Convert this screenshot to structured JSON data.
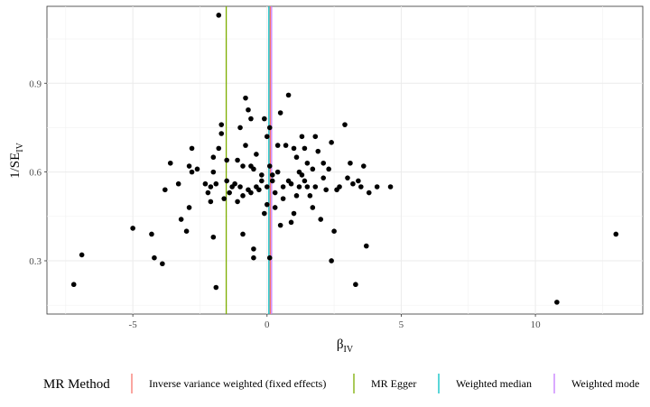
{
  "chart_data": {
    "type": "scatter",
    "xlabel_main": "β",
    "xlabel_sub": "IV",
    "ylabel_main": "1/SE",
    "ylabel_sub": "IV",
    "xlim": [
      -8.2,
      14.0
    ],
    "ylim": [
      0.12,
      1.16
    ],
    "x_ticks": [
      {
        "value": -5,
        "label": "-5"
      },
      {
        "value": 0,
        "label": "0"
      },
      {
        "value": 5,
        "label": "5"
      },
      {
        "value": 10,
        "label": "10"
      }
    ],
    "y_ticks": [
      {
        "value": 0.3,
        "label": "0.3"
      },
      {
        "value": 0.6,
        "label": "0.6"
      },
      {
        "value": 0.9,
        "label": "0.9"
      }
    ],
    "grid": true,
    "legend_position": "bottom",
    "legend_title": "MR Method",
    "methods": [
      {
        "name": "Inverse variance weighted (fixed effects)",
        "estimate": 0.12,
        "color": "#F8766D"
      },
      {
        "name": "MR Egger",
        "estimate": -1.52,
        "color": "#7CAE00"
      },
      {
        "name": "Weighted median",
        "estimate": 0.07,
        "color": "#00BFC4"
      },
      {
        "name": "Weighted mode",
        "estimate": 0.17,
        "color": "#C77CFF"
      }
    ],
    "points": [
      [
        -7.2,
        0.22
      ],
      [
        -6.9,
        0.32
      ],
      [
        -5.0,
        0.41
      ],
      [
        -4.3,
        0.39
      ],
      [
        -4.2,
        0.31
      ],
      [
        -3.9,
        0.29
      ],
      [
        -3.8,
        0.54
      ],
      [
        -3.6,
        0.63
      ],
      [
        -3.3,
        0.56
      ],
      [
        -3.2,
        0.44
      ],
      [
        -3.0,
        0.4
      ],
      [
        -2.9,
        0.48
      ],
      [
        -2.9,
        0.62
      ],
      [
        -2.8,
        0.6
      ],
      [
        -2.8,
        0.68
      ],
      [
        -2.6,
        0.61
      ],
      [
        -2.3,
        0.56
      ],
      [
        -2.2,
        0.53
      ],
      [
        -2.1,
        0.55
      ],
      [
        -2.1,
        0.5
      ],
      [
        -2.0,
        0.38
      ],
      [
        -2.0,
        0.6
      ],
      [
        -2.0,
        0.65
      ],
      [
        -1.9,
        0.21
      ],
      [
        -1.9,
        0.56
      ],
      [
        -1.8,
        0.68
      ],
      [
        -1.8,
        1.13
      ],
      [
        -1.7,
        0.73
      ],
      [
        -1.7,
        0.76
      ],
      [
        -1.6,
        0.51
      ],
      [
        -1.5,
        0.64
      ],
      [
        -1.5,
        0.57
      ],
      [
        -1.4,
        0.53
      ],
      [
        -1.3,
        0.55
      ],
      [
        -1.2,
        0.56
      ],
      [
        -1.1,
        0.64
      ],
      [
        -1.1,
        0.5
      ],
      [
        -1.0,
        0.75
      ],
      [
        -1.0,
        0.55
      ],
      [
        -0.9,
        0.52
      ],
      [
        -0.9,
        0.39
      ],
      [
        -0.9,
        0.62
      ],
      [
        -0.8,
        0.85
      ],
      [
        -0.8,
        0.69
      ],
      [
        -0.7,
        0.81
      ],
      [
        -0.7,
        0.54
      ],
      [
        -0.6,
        0.78
      ],
      [
        -0.6,
        0.62
      ],
      [
        -0.6,
        0.53
      ],
      [
        -0.5,
        0.34
      ],
      [
        -0.5,
        0.31
      ],
      [
        -0.5,
        0.61
      ],
      [
        -0.4,
        0.55
      ],
      [
        -0.4,
        0.66
      ],
      [
        -0.3,
        0.54
      ],
      [
        -0.2,
        0.59
      ],
      [
        -0.2,
        0.57
      ],
      [
        -0.1,
        0.78
      ],
      [
        -0.1,
        0.46
      ],
      [
        0.0,
        0.72
      ],
      [
        0.0,
        0.55
      ],
      [
        0.0,
        0.49
      ],
      [
        0.1,
        0.75
      ],
      [
        0.1,
        0.62
      ],
      [
        0.1,
        0.31
      ],
      [
        0.2,
        0.57
      ],
      [
        0.2,
        0.59
      ],
      [
        0.3,
        0.53
      ],
      [
        0.3,
        0.48
      ],
      [
        0.4,
        0.6
      ],
      [
        0.4,
        0.69
      ],
      [
        0.5,
        0.8
      ],
      [
        0.5,
        0.42
      ],
      [
        0.6,
        0.55
      ],
      [
        0.6,
        0.51
      ],
      [
        0.7,
        0.69
      ],
      [
        0.8,
        0.86
      ],
      [
        0.8,
        0.57
      ],
      [
        0.9,
        0.43
      ],
      [
        0.9,
        0.56
      ],
      [
        1.0,
        0.68
      ],
      [
        1.0,
        0.46
      ],
      [
        1.1,
        0.52
      ],
      [
        1.1,
        0.65
      ],
      [
        1.2,
        0.6
      ],
      [
        1.2,
        0.55
      ],
      [
        1.3,
        0.72
      ],
      [
        1.3,
        0.59
      ],
      [
        1.4,
        0.57
      ],
      [
        1.4,
        0.68
      ],
      [
        1.5,
        0.63
      ],
      [
        1.5,
        0.55
      ],
      [
        1.6,
        0.52
      ],
      [
        1.7,
        0.61
      ],
      [
        1.7,
        0.48
      ],
      [
        1.8,
        0.72
      ],
      [
        1.8,
        0.55
      ],
      [
        1.9,
        0.67
      ],
      [
        2.0,
        0.44
      ],
      [
        2.1,
        0.63
      ],
      [
        2.1,
        0.58
      ],
      [
        2.2,
        0.54
      ],
      [
        2.3,
        0.61
      ],
      [
        2.4,
        0.7
      ],
      [
        2.4,
        0.3
      ],
      [
        2.5,
        0.4
      ],
      [
        2.6,
        0.54
      ],
      [
        2.7,
        0.55
      ],
      [
        2.9,
        0.76
      ],
      [
        3.0,
        0.58
      ],
      [
        3.1,
        0.63
      ],
      [
        3.2,
        0.56
      ],
      [
        3.3,
        0.22
      ],
      [
        3.4,
        0.57
      ],
      [
        3.5,
        0.55
      ],
      [
        3.6,
        0.62
      ],
      [
        3.7,
        0.35
      ],
      [
        3.8,
        0.53
      ],
      [
        4.1,
        0.55
      ],
      [
        4.6,
        0.55
      ],
      [
        10.8,
        0.16
      ],
      [
        13.0,
        0.39
      ]
    ]
  }
}
